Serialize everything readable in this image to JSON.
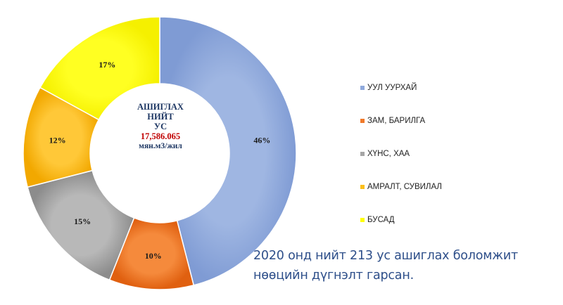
{
  "chart_data": {
    "type": "pie",
    "categories": [
      "УУЛ УУРХАЙ",
      "ЗАМ, БАРИЛГА",
      "ХҮНС, ХАА",
      "АМРАЛТ, СУВИЛАЛ",
      "БУСАД"
    ],
    "values": [
      46,
      10,
      15,
      12,
      17
    ],
    "value_labels": [
      "46%",
      "10%",
      "15%",
      "12%",
      "17%"
    ],
    "colors": [
      "#8fa9dc",
      "#f07a2a",
      "#a6a6a6",
      "#fbbf1b",
      "#ffff00"
    ],
    "donut": true,
    "legend_position": "right"
  },
  "center": {
    "line1": "АШИГЛАХ",
    "line2": "НИЙТ",
    "line3": "УС",
    "value": "17,586.065",
    "unit": "мян.м3/жил"
  },
  "caption": {
    "line1": "2020 онд нийт 213 ус ашиглах боломжит",
    "line2": "нөөцийн дүгнэлт гарсан."
  }
}
